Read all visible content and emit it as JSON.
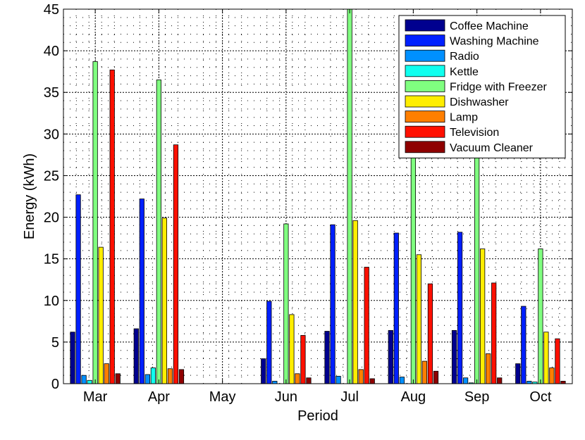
{
  "chart_data": {
    "type": "bar",
    "xlabel": "Period",
    "ylabel": "Energy (kWh)",
    "ylim": [
      0,
      45
    ],
    "yticks": [
      0,
      5,
      10,
      15,
      20,
      25,
      30,
      35,
      40,
      45
    ],
    "grid": true,
    "legend_position": "top-right",
    "categories": [
      "Mar",
      "Apr",
      "May",
      "Jun",
      "Jul",
      "Aug",
      "Sep",
      "Oct"
    ],
    "series": [
      {
        "name": "Coffee Machine",
        "color": "#00008f",
        "values": [
          6.2,
          6.6,
          0,
          3.0,
          6.3,
          6.4,
          6.4,
          2.4
        ]
      },
      {
        "name": "Washing Machine",
        "color": "#0020ff",
        "values": [
          22.7,
          22.2,
          0,
          9.9,
          19.1,
          18.1,
          18.2,
          9.3
        ]
      },
      {
        "name": "Radio",
        "color": "#0090ff",
        "values": [
          1.0,
          1.1,
          0,
          0.3,
          0.9,
          0.8,
          0.7,
          0.3
        ]
      },
      {
        "name": "Kettle",
        "color": "#10ffef",
        "values": [
          0.4,
          1.9,
          0,
          0,
          0,
          0,
          0.1,
          0.2
        ]
      },
      {
        "name": "Fridge with Freezer",
        "color": "#80ff80",
        "values": [
          38.7,
          36.5,
          0,
          19.2,
          45.0,
          34.0,
          34.0,
          16.2
        ]
      },
      {
        "name": "Dishwasher",
        "color": "#ffee00",
        "values": [
          16.4,
          19.9,
          0,
          8.3,
          19.6,
          15.5,
          16.2,
          6.2
        ]
      },
      {
        "name": "Lamp",
        "color": "#ff7f00",
        "values": [
          2.4,
          1.8,
          0,
          1.2,
          1.7,
          2.7,
          3.6,
          1.9
        ]
      },
      {
        "name": "Television",
        "color": "#ff1000",
        "values": [
          37.7,
          28.7,
          0,
          5.8,
          14.0,
          12.0,
          12.1,
          5.4
        ]
      },
      {
        "name": "Vacuum Cleaner",
        "color": "#8f0000",
        "values": [
          1.2,
          1.7,
          0,
          0.7,
          0.6,
          1.5,
          0.7,
          0.3
        ]
      }
    ]
  }
}
